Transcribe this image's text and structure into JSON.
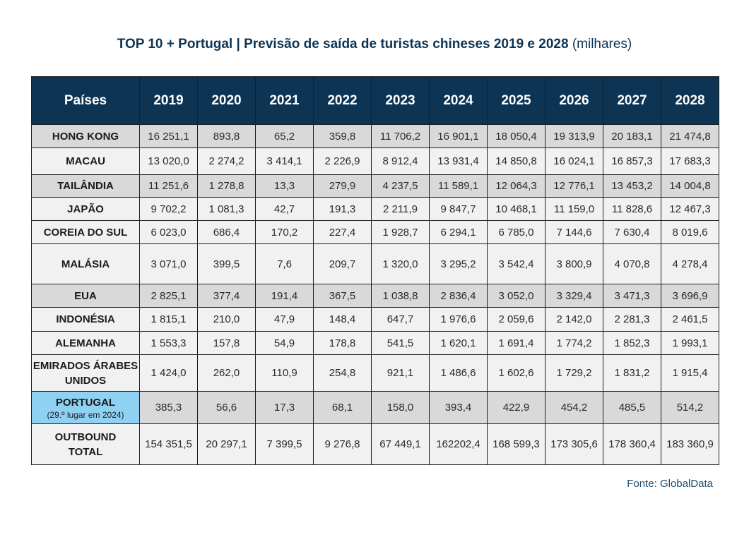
{
  "title": {
    "main": "TOP 10 + Portugal | Previsão de saída de turistas chineses 2019 e 2028",
    "unit": "(milhares)"
  },
  "table": {
    "headers": [
      "Países",
      "2019",
      "2020",
      "2021",
      "2022",
      "2023",
      "2024",
      "2025",
      "2026",
      "2027",
      "2028"
    ],
    "rows": [
      {
        "country": "HONG KONG",
        "values": [
          "16 251,1",
          "893,8",
          "65,2",
          "359,8",
          "11 706,2",
          "16 901,1",
          "18 050,4",
          "19 313,9",
          "20 183,1",
          "21 474,8"
        ]
      },
      {
        "country": "MACAU",
        "values": [
          "13 020,0",
          "2 274,2",
          "3 414,1",
          "2 226,9",
          "8 912,4",
          "13 931,4",
          "14 850,8",
          "16 024,1",
          "16 857,3",
          "17 683,3"
        ]
      },
      {
        "country": "TAILÂNDIA",
        "values": [
          "11 251,6",
          "1 278,8",
          "13,3",
          "279,9",
          "4 237,5",
          "11 589,1",
          "12 064,3",
          "12 776,1",
          "13 453,2",
          "14 004,8"
        ]
      },
      {
        "country": "JAPÃO",
        "values": [
          "9 702,2",
          "1 081,3",
          "42,7",
          "191,3",
          "2 211,9",
          "9 847,7",
          "10 468,1",
          "11 159,0",
          "11 828,6",
          "12 467,3"
        ]
      },
      {
        "country": "COREIA DO SUL",
        "values": [
          "6 023,0",
          "686,4",
          "170,2",
          "227,4",
          "1 928,7",
          "6 294,1",
          "6 785,0",
          "7 144,6",
          "7 630,4",
          "8 019,6"
        ]
      },
      {
        "country": "MALÁSIA",
        "values": [
          "3 071,0",
          "399,5",
          "7,6",
          "209,7",
          "1 320,0",
          "3 295,2",
          "3 542,4",
          "3 800,9",
          "4 070,8",
          "4 278,4"
        ]
      },
      {
        "country": "EUA",
        "values": [
          "2 825,1",
          "377,4",
          "191,4",
          "367,5",
          "1 038,8",
          "2 836,4",
          "3 052,0",
          "3 329,4",
          "3 471,3",
          "3 696,9"
        ]
      },
      {
        "country": "INDONÉSIA",
        "values": [
          "1 815,1",
          "210,0",
          "47,9",
          "148,4",
          "647,7",
          "1 976,6",
          "2 059,6",
          "2 142,0",
          "2 281,3",
          "2 461,5"
        ]
      },
      {
        "country": "ALEMANHA",
        "values": [
          "1 553,3",
          "157,8",
          "54,9",
          "178,8",
          "541,5",
          "1 620,1",
          "1 691,4",
          "1 774,2",
          "1 852,3",
          "1 993,1"
        ]
      },
      {
        "country_line1": "EMIRADOS ÁRABES",
        "country_line2": "UNIDOS",
        "values": [
          "1 424,0",
          "262,0",
          "110,9",
          "254,8",
          "921,1",
          "1 486,6",
          "1 602,6",
          "1 729,2",
          "1 831,2",
          "1 915,4"
        ]
      },
      {
        "country": "PORTUGAL",
        "note": "(29.º lugar em 2024)",
        "values": [
          "385,3",
          "56,6",
          "17,3",
          "68,1",
          "158,0",
          "393,4",
          "422,9",
          "454,2",
          "485,5",
          "514,2"
        ]
      },
      {
        "country_line1": "OUTBOUND",
        "country_line2": "TOTAL",
        "values": [
          "154 351,5",
          "20 297,1",
          "7 399,5",
          "9 276,8",
          "67 449,1",
          "162202,4",
          "168 599,3",
          "173 305,6",
          "178 360,4",
          "183 360,9"
        ]
      }
    ]
  },
  "source": "Fonte: GlobalData",
  "colors": {
    "header_bg": "#0d3453",
    "title_text": "#0d3453",
    "portugal_highlight": "#8fd1f3",
    "row_shade": "#d9d9d9",
    "row_light": "#f1f1f1"
  }
}
